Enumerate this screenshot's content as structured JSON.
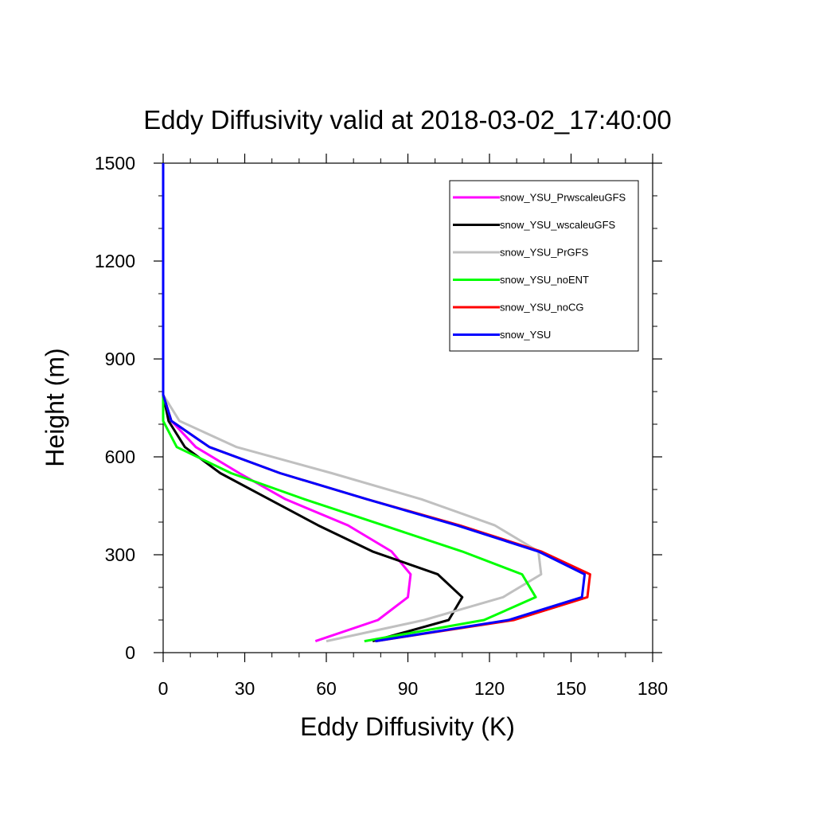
{
  "chart_data": {
    "type": "line",
    "title": "Eddy Diffusivity valid at 2018-03-02_17:40:00",
    "xlabel": "Eddy Diffusivity (K)",
    "ylabel": "Height (m)",
    "xlim": [
      0,
      180
    ],
    "ylim": [
      0,
      1500
    ],
    "xticks": [
      0,
      30,
      60,
      90,
      120,
      150,
      180
    ],
    "yticks": [
      0,
      300,
      600,
      900,
      1200,
      1500
    ],
    "legend_position": "top-right",
    "series": [
      {
        "name": "snow_YSU_PrwscaleuGFS",
        "color": "#ff00ff",
        "points": [
          [
            56,
            35
          ],
          [
            79,
            100
          ],
          [
            90,
            170
          ],
          [
            91,
            240
          ],
          [
            84,
            310
          ],
          [
            68,
            390
          ],
          [
            45,
            470
          ],
          [
            28,
            550
          ],
          [
            12,
            630
          ],
          [
            3,
            710
          ],
          [
            0,
            790
          ],
          [
            0,
            900
          ],
          [
            0,
            1200
          ],
          [
            0,
            1500
          ]
        ]
      },
      {
        "name": "snow_YSU_wscaleuGFS",
        "color": "#000000",
        "points": [
          [
            77,
            35
          ],
          [
            105,
            100
          ],
          [
            110,
            170
          ],
          [
            101,
            240
          ],
          [
            77,
            310
          ],
          [
            57,
            390
          ],
          [
            39,
            470
          ],
          [
            21,
            550
          ],
          [
            8,
            630
          ],
          [
            2,
            710
          ],
          [
            0,
            790
          ],
          [
            0,
            900
          ],
          [
            0,
            1200
          ],
          [
            0,
            1500
          ]
        ]
      },
      {
        "name": "snow_YSU_PrGFS",
        "color": "#c0c0c0",
        "points": [
          [
            60,
            35
          ],
          [
            96,
            100
          ],
          [
            125,
            170
          ],
          [
            139,
            240
          ],
          [
            138,
            310
          ],
          [
            122,
            390
          ],
          [
            95,
            470
          ],
          [
            62,
            550
          ],
          [
            27,
            630
          ],
          [
            6,
            710
          ],
          [
            0,
            790
          ],
          [
            0,
            900
          ],
          [
            0,
            1200
          ],
          [
            0,
            1500
          ]
        ]
      },
      {
        "name": "snow_YSU_noENT",
        "color": "#00ff00",
        "points": [
          [
            74,
            35
          ],
          [
            118,
            100
          ],
          [
            137,
            170
          ],
          [
            132,
            240
          ],
          [
            110,
            310
          ],
          [
            81,
            390
          ],
          [
            52,
            470
          ],
          [
            25,
            550
          ],
          [
            5,
            630
          ],
          [
            0,
            710
          ],
          [
            0,
            790
          ],
          [
            0,
            900
          ],
          [
            0,
            1200
          ],
          [
            0,
            1500
          ]
        ]
      },
      {
        "name": "snow_YSU_noCG",
        "color": "#ff0000",
        "points": [
          [
            78,
            35
          ],
          [
            129,
            100
          ],
          [
            156,
            170
          ],
          [
            157,
            240
          ],
          [
            139,
            310
          ],
          [
            109,
            390
          ],
          [
            75,
            470
          ],
          [
            43,
            550
          ],
          [
            17,
            630
          ],
          [
            3,
            710
          ],
          [
            0,
            790
          ],
          [
            0,
            900
          ],
          [
            0,
            1200
          ],
          [
            0,
            1500
          ]
        ]
      },
      {
        "name": "snow_YSU",
        "color": "#0000ff",
        "points": [
          [
            78,
            35
          ],
          [
            127,
            100
          ],
          [
            154,
            170
          ],
          [
            155,
            240
          ],
          [
            138,
            310
          ],
          [
            108,
            390
          ],
          [
            75,
            470
          ],
          [
            43,
            550
          ],
          [
            17,
            630
          ],
          [
            3,
            710
          ],
          [
            0,
            790
          ],
          [
            0,
            900
          ],
          [
            0,
            1200
          ],
          [
            0,
            1500
          ]
        ]
      }
    ]
  }
}
